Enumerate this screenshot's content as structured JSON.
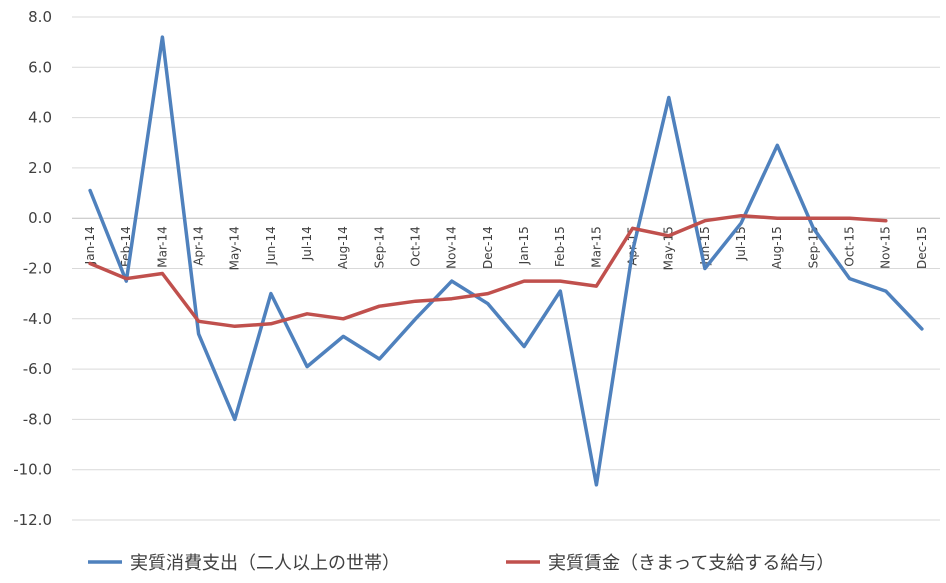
{
  "chart_data": {
    "type": "line",
    "title": "",
    "xlabel": "",
    "ylabel": "",
    "ylim": [
      -12,
      8
    ],
    "y_ticks": [
      "8.0",
      "6.0",
      "4.0",
      "2.0",
      "0.0",
      "-2.0",
      "-4.0",
      "-6.0",
      "-8.0",
      "-10.0",
      "-12.0"
    ],
    "grid": true,
    "legend_position": "bottom",
    "categories": [
      "Jan-14",
      "Feb-14",
      "Mar-14",
      "Apr-14",
      "May-14",
      "Jun-14",
      "Jul-14",
      "Aug-14",
      "Sep-14",
      "Oct-14",
      "Nov-14",
      "Dec-14",
      "Jan-15",
      "Feb-15",
      "Mar-15",
      "Apr-15",
      "May-15",
      "Jun-15",
      "Jul-15",
      "Aug-15",
      "Sep-15",
      "Oct-15",
      "Nov-15",
      "Dec-15"
    ],
    "series": [
      {
        "name": "実質消費支出（二人以上の世帯）",
        "color": "#4f81bd",
        "values": [
          1.1,
          -2.5,
          7.2,
          -4.6,
          -8.0,
          -3.0,
          -5.9,
          -4.7,
          -5.6,
          -4.0,
          -2.5,
          -3.4,
          -5.1,
          -2.9,
          -10.6,
          -1.3,
          4.8,
          -2.0,
          -0.2,
          2.9,
          -0.4,
          -2.4,
          -2.9,
          -4.4
        ]
      },
      {
        "name": "実質賃金（きまって支給する給与）",
        "color": "#c0504d",
        "values": [
          -1.8,
          -2.4,
          -2.2,
          -4.1,
          -4.3,
          -4.2,
          -3.8,
          -4.0,
          -3.5,
          -3.3,
          -3.2,
          -3.0,
          -2.5,
          -2.5,
          -2.7,
          -0.4,
          -0.7,
          -0.1,
          0.1,
          0.0,
          0.0,
          0.0,
          -0.1,
          null
        ]
      }
    ]
  }
}
